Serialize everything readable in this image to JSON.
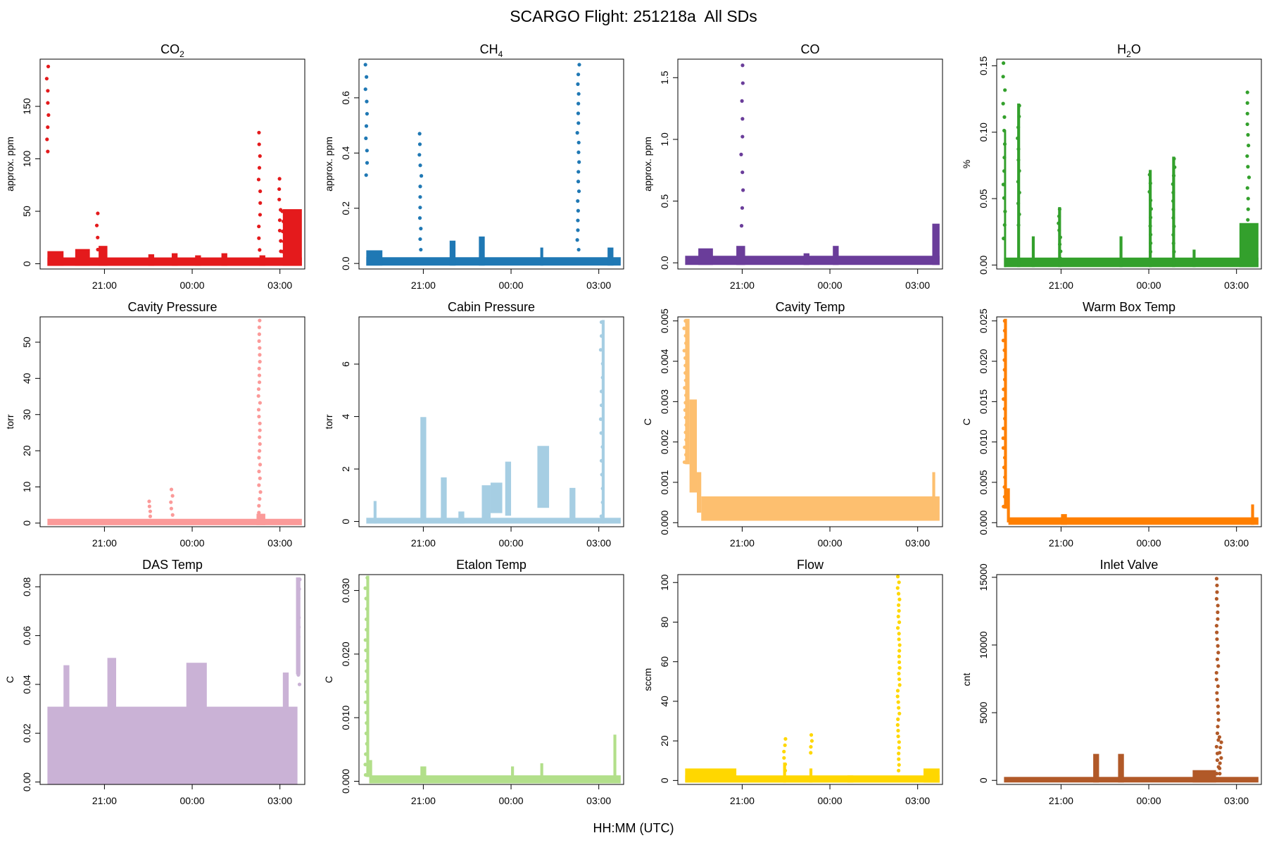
{
  "figure": {
    "title": "SCARGO Flight: 251218a  All SDs",
    "xlabel": "HH:MM (UTC)"
  },
  "chart_data": [
    {
      "type": "scatter",
      "title": "CO",
      "title_sub": "2",
      "ylabel": "approx. ppm",
      "color": "#e41a1c",
      "xlim": [
        18.8,
        27.85
      ],
      "ylim": [
        -5,
        195
      ],
      "yticks": [
        0,
        50,
        100,
        150
      ],
      "yticklabels": [
        "0",
        "50",
        "100",
        "150"
      ],
      "xticks": [
        21,
        24,
        27
      ],
      "xticklabels": [
        "21:00",
        "00:00",
        "03:00"
      ],
      "baseline": {
        "from": 19.05,
        "to": 27.75,
        "lo": 0,
        "hi": 4
      },
      "segments": [
        [
          19.05,
          19.6,
          0,
          10
        ],
        [
          20.0,
          20.5,
          0,
          12
        ],
        [
          20.8,
          21.1,
          0,
          15
        ],
        [
          22.5,
          22.7,
          0,
          7
        ],
        [
          23.3,
          23.5,
          0,
          8
        ],
        [
          24.1,
          24.3,
          0,
          6
        ],
        [
          25.0,
          25.2,
          0,
          8
        ],
        [
          26.3,
          26.5,
          0,
          6
        ],
        [
          27.1,
          27.75,
          0,
          50
        ]
      ],
      "columns": [
        [
          19.05,
          107,
          188,
          8
        ],
        [
          20.75,
          2,
          48,
          5
        ],
        [
          26.3,
          2,
          125,
          12
        ],
        [
          27.0,
          2,
          81,
          9
        ],
        [
          27.1,
          2,
          50,
          6
        ]
      ]
    },
    {
      "type": "scatter",
      "title": "CH",
      "title_sub": "4",
      "ylabel": "approx. ppm",
      "color": "#1f78b4",
      "xlim": [
        18.8,
        27.85
      ],
      "ylim": [
        -0.02,
        0.74
      ],
      "yticks": [
        0,
        0.2,
        0.4,
        0.6
      ],
      "yticklabels": [
        "0.0",
        "0.2",
        "0.4",
        "0.6"
      ],
      "xticks": [
        21,
        24,
        27
      ],
      "xticklabels": [
        "21:00",
        "00:00",
        "03:00"
      ],
      "baseline": {
        "from": 19.05,
        "to": 27.75,
        "lo": 0,
        "hi": 0.015
      },
      "segments": [
        [
          19.05,
          19.6,
          0,
          0.04
        ],
        [
          21.9,
          22.1,
          0,
          0.075
        ],
        [
          22.9,
          23.1,
          0,
          0.09
        ],
        [
          25.0,
          25.1,
          0,
          0.05
        ],
        [
          27.3,
          27.5,
          0,
          0.05
        ]
      ],
      "columns": [
        [
          19.05,
          0.32,
          0.72,
          10
        ],
        [
          20.9,
          0.05,
          0.47,
          12
        ],
        [
          26.3,
          0.05,
          0.72,
          20
        ]
      ]
    },
    {
      "type": "scatter",
      "title": "CO",
      "title_sub": "",
      "ylabel": "approx. ppm",
      "color": "#6a3d9a",
      "xlim": [
        18.8,
        27.85
      ],
      "ylim": [
        -0.05,
        1.65
      ],
      "yticks": [
        0,
        0.5,
        1.0,
        1.5
      ],
      "yticklabels": [
        "0.0",
        "0.5",
        "1.0",
        "1.5"
      ],
      "xticks": [
        21,
        24,
        27
      ],
      "xticklabels": [
        "21:00",
        "00:00",
        "03:00"
      ],
      "baseline": {
        "from": 19.05,
        "to": 27.75,
        "lo": 0,
        "hi": 0.04
      },
      "segments": [
        [
          19.5,
          20.0,
          0,
          0.1
        ],
        [
          20.8,
          21.1,
          0,
          0.12
        ],
        [
          23.1,
          23.3,
          0,
          0.06
        ],
        [
          24.1,
          24.3,
          0,
          0.12
        ],
        [
          27.5,
          27.75,
          0,
          0.3
        ]
      ],
      "columns": [
        [
          21.0,
          0.3,
          1.6,
          10
        ]
      ]
    },
    {
      "type": "scatter",
      "title": "H",
      "title_sub": "2",
      "title_tail": "O",
      "ylabel": "%",
      "color": "#33a02c",
      "xlim": [
        18.8,
        27.85
      ],
      "ylim": [
        -0.003,
        0.155
      ],
      "yticks": [
        0,
        0.05,
        0.1,
        0.15
      ],
      "yticklabels": [
        "0.00",
        "0.05",
        "0.10",
        "0.15"
      ],
      "xticks": [
        21,
        24,
        27
      ],
      "xticklabels": [
        "21:00",
        "00:00",
        "03:00"
      ],
      "baseline": {
        "from": 19.05,
        "to": 27.75,
        "lo": 0,
        "hi": 0.004
      },
      "segments": [
        [
          19.05,
          19.1,
          0,
          0.1
        ],
        [
          19.5,
          19.6,
          0,
          0.12
        ],
        [
          20.0,
          20.1,
          0,
          0.02
        ],
        [
          20.9,
          21.0,
          0,
          0.042
        ],
        [
          23.0,
          23.1,
          0,
          0.02
        ],
        [
          24.0,
          24.1,
          0,
          0.07
        ],
        [
          24.8,
          24.9,
          0,
          0.08
        ],
        [
          25.5,
          25.6,
          0,
          0.01
        ],
        [
          27.1,
          27.75,
          0,
          0.03
        ]
      ],
      "columns": [
        [
          19.05,
          0.02,
          0.152,
          14
        ],
        [
          19.55,
          0.03,
          0.12,
          12
        ],
        [
          20.95,
          0.005,
          0.042,
          8
        ],
        [
          24.05,
          0.01,
          0.068,
          10
        ],
        [
          24.85,
          0.01,
          0.08,
          12
        ],
        [
          27.4,
          0.01,
          0.13,
          16
        ]
      ]
    },
    {
      "type": "scatter",
      "title": "Cavity Pressure",
      "title_sub": "",
      "ylabel": "torr",
      "color": "#fb9a99",
      "xlim": [
        18.8,
        27.85
      ],
      "ylim": [
        -1,
        57
      ],
      "yticks": [
        0,
        10,
        20,
        30,
        40,
        50
      ],
      "yticklabels": [
        "0",
        "10",
        "20",
        "30",
        "40",
        "50"
      ],
      "xticks": [
        21,
        24,
        27
      ],
      "xticklabels": [
        "21:00",
        "00:00",
        "03:00"
      ],
      "baseline": {
        "from": 19.05,
        "to": 27.75,
        "lo": 0,
        "hi": 0.6
      },
      "segments": [
        [
          26.2,
          26.5,
          0,
          2
        ]
      ],
      "columns": [
        [
          22.55,
          0.5,
          6,
          5
        ],
        [
          23.3,
          0.5,
          9.3,
          6
        ],
        [
          26.3,
          1,
          56,
          30
        ]
      ]
    },
    {
      "type": "scatter",
      "title": "Cabin Pressure",
      "title_sub": "",
      "ylabel": "torr",
      "color": "#a6cee3",
      "xlim": [
        18.8,
        27.85
      ],
      "ylim": [
        -0.2,
        7.8
      ],
      "yticks": [
        0,
        2,
        4,
        6
      ],
      "yticklabels": [
        "0",
        "2",
        "4",
        "6"
      ],
      "xticks": [
        21,
        24,
        27
      ],
      "xticklabels": [
        "21:00",
        "00:00",
        "03:00"
      ],
      "baseline": {
        "from": 19.05,
        "to": 27.75,
        "lo": 0,
        "hi": 0.06
      },
      "segments": [
        [
          19.3,
          19.4,
          0,
          0.7
        ],
        [
          20.9,
          21.1,
          0.2,
          3.9
        ],
        [
          21.6,
          21.8,
          0.2,
          1.6
        ],
        [
          22.2,
          22.4,
          0,
          0.3
        ],
        [
          23.0,
          23.3,
          0.2,
          1.3
        ],
        [
          23.3,
          23.7,
          0.4,
          1.4
        ],
        [
          23.8,
          24.0,
          0.3,
          2.2
        ],
        [
          24.9,
          25.3,
          0.6,
          2.8
        ],
        [
          26.0,
          26.2,
          0.2,
          1.2
        ],
        [
          27.1,
          27.2,
          0,
          7.6
        ]
      ],
      "columns": [
        [
          27.1,
          0.2,
          7.6,
          15
        ]
      ]
    },
    {
      "type": "scatter",
      "title": "Cavity Temp",
      "title_sub": "",
      "ylabel": "C",
      "color": "#fdbf6f",
      "xlim": [
        18.8,
        27.85
      ],
      "ylim": [
        -0.0001,
        0.0051
      ],
      "yticks": [
        0,
        0.001,
        0.002,
        0.003,
        0.004,
        0.005
      ],
      "yticklabels": [
        "0.000",
        "0.001",
        "0.002",
        "0.003",
        "0.004",
        "0.005"
      ],
      "xticks": [
        21,
        24,
        27
      ],
      "xticklabels": [
        "21:00",
        "00:00",
        "03:00"
      ],
      "baseline": {
        "from": 19.6,
        "to": 27.75,
        "lo": 0.0001,
        "hi": 0.0006
      },
      "segments": [
        [
          19.05,
          19.2,
          0.0015,
          0.005
        ],
        [
          19.2,
          19.45,
          0.0008,
          0.003
        ],
        [
          19.45,
          19.6,
          0.0003,
          0.0012
        ],
        [
          27.5,
          27.6,
          0.0002,
          0.0012
        ]
      ],
      "columns": [
        [
          19.05,
          0.0015,
          0.005,
          20
        ]
      ]
    },
    {
      "type": "scatter",
      "title": "Warm Box Temp",
      "title_sub": "",
      "ylabel": "C",
      "color": "#ff7f00",
      "xlim": [
        18.8,
        27.85
      ],
      "ylim": [
        -0.0005,
        0.0255
      ],
      "yticks": [
        0,
        0.005,
        0.01,
        0.015,
        0.02,
        0.025
      ],
      "yticklabels": [
        "0.000",
        "0.005",
        "0.010",
        "0.015",
        "0.020",
        "0.025"
      ],
      "xticks": [
        21,
        24,
        27
      ],
      "xticklabels": [
        "21:00",
        "00:00",
        "03:00"
      ],
      "baseline": {
        "from": 19.2,
        "to": 27.75,
        "lo": 0,
        "hi": 0.0004
      },
      "segments": [
        [
          19.05,
          19.15,
          0.002,
          0.025
        ],
        [
          19.15,
          19.25,
          0.0003,
          0.004
        ],
        [
          21.0,
          21.2,
          0,
          0.0008
        ],
        [
          27.5,
          27.6,
          0,
          0.002
        ]
      ],
      "columns": [
        [
          19.05,
          0.002,
          0.025,
          20
        ]
      ]
    },
    {
      "type": "scatter",
      "title": "DAS Temp",
      "title_sub": "",
      "ylabel": "C",
      "color": "#cab2d6",
      "xlim": [
        18.8,
        27.85
      ],
      "ylim": [
        -0.001,
        0.085
      ],
      "yticks": [
        0,
        0.02,
        0.04,
        0.06,
        0.08
      ],
      "yticklabels": [
        "0.00",
        "0.02",
        "0.04",
        "0.06",
        "0.08"
      ],
      "xticks": [
        21,
        24,
        27
      ],
      "xticklabels": [
        "21:00",
        "00:00",
        "03:00"
      ],
      "baseline": {
        "from": 19.05,
        "to": 27.6,
        "lo": 0,
        "hi": 0.03
      },
      "segments": [
        [
          19.6,
          19.8,
          0.005,
          0.047
        ],
        [
          21.1,
          21.4,
          0.025,
          0.05
        ],
        [
          23.8,
          24.5,
          0.01,
          0.048
        ],
        [
          27.1,
          27.3,
          0,
          0.044
        ],
        [
          27.55,
          27.7,
          0.045,
          0.083
        ]
      ],
      "columns": [
        [
          27.65,
          0.04,
          0.083,
          12
        ]
      ]
    },
    {
      "type": "scatter",
      "title": "Etalon Temp",
      "title_sub": "",
      "ylabel": "C",
      "color": "#b2df8a",
      "xlim": [
        18.8,
        27.85
      ],
      "ylim": [
        -0.0005,
        0.0325
      ],
      "yticks": [
        0,
        0.01,
        0.02,
        0.03
      ],
      "yticklabels": [
        "0.000",
        "0.010",
        "0.020",
        "0.030"
      ],
      "xticks": [
        21,
        24,
        27
      ],
      "xticklabels": [
        "21:00",
        "00:00",
        "03:00"
      ],
      "baseline": {
        "from": 19.2,
        "to": 27.75,
        "lo": 0,
        "hi": 0.0006
      },
      "segments": [
        [
          19.05,
          19.15,
          0.001,
          0.032
        ],
        [
          19.15,
          19.25,
          0,
          0.003
        ],
        [
          20.9,
          21.1,
          0,
          0.002
        ],
        [
          24.0,
          24.1,
          0,
          0.002
        ],
        [
          25.0,
          25.1,
          0,
          0.0025
        ],
        [
          27.5,
          27.6,
          0,
          0.007
        ]
      ],
      "columns": [
        [
          19.05,
          0.001,
          0.032,
          20
        ]
      ]
    },
    {
      "type": "scatter",
      "title": "Flow",
      "title_sub": "",
      "ylabel": "sccm",
      "color": "#ffd700",
      "xlim": [
        18.8,
        27.85
      ],
      "ylim": [
        -2,
        104
      ],
      "yticks": [
        0,
        20,
        40,
        60,
        80,
        100
      ],
      "yticklabels": [
        "0",
        "20",
        "40",
        "60",
        "80",
        "100"
      ],
      "xticks": [
        21,
        24,
        27
      ],
      "xticklabels": [
        "21:00",
        "00:00",
        "03:00"
      ],
      "baseline": {
        "from": 19.05,
        "to": 27.75,
        "lo": 0,
        "hi": 1.5
      },
      "segments": [
        [
          19.05,
          20.8,
          0.5,
          5
        ],
        [
          22.4,
          22.5,
          0,
          8
        ],
        [
          23.3,
          23.4,
          0,
          5
        ],
        [
          24.6,
          24.8,
          0,
          1.5
        ],
        [
          27.2,
          27.75,
          0,
          5
        ]
      ],
      "columns": [
        [
          22.45,
          5,
          21,
          6
        ],
        [
          23.35,
          14,
          23,
          4
        ],
        [
          26.35,
          5,
          103,
          35
        ]
      ]
    },
    {
      "type": "scatter",
      "title": "Inlet Valve",
      "title_sub": "",
      "ylabel": "cnt",
      "color": "#b15928",
      "xlim": [
        18.8,
        27.85
      ],
      "ylim": [
        -300,
        15200
      ],
      "yticks": [
        0,
        5000,
        10000,
        15000
      ],
      "yticklabels": [
        "0",
        "5000",
        "10000",
        "15000"
      ],
      "xticks": [
        21,
        24,
        27
      ],
      "xticklabels": [
        "21:00",
        "00:00",
        "03:00"
      ],
      "baseline": {
        "from": 19.05,
        "to": 27.75,
        "lo": 0,
        "hi": 100
      },
      "segments": [
        [
          22.1,
          22.3,
          0,
          1800
        ],
        [
          22.95,
          23.15,
          0,
          1800
        ],
        [
          25.5,
          26.3,
          0,
          600
        ]
      ],
      "columns": [
        [
          26.35,
          500,
          14900,
          30
        ],
        [
          26.45,
          500,
          3200,
          8
        ]
      ]
    }
  ]
}
